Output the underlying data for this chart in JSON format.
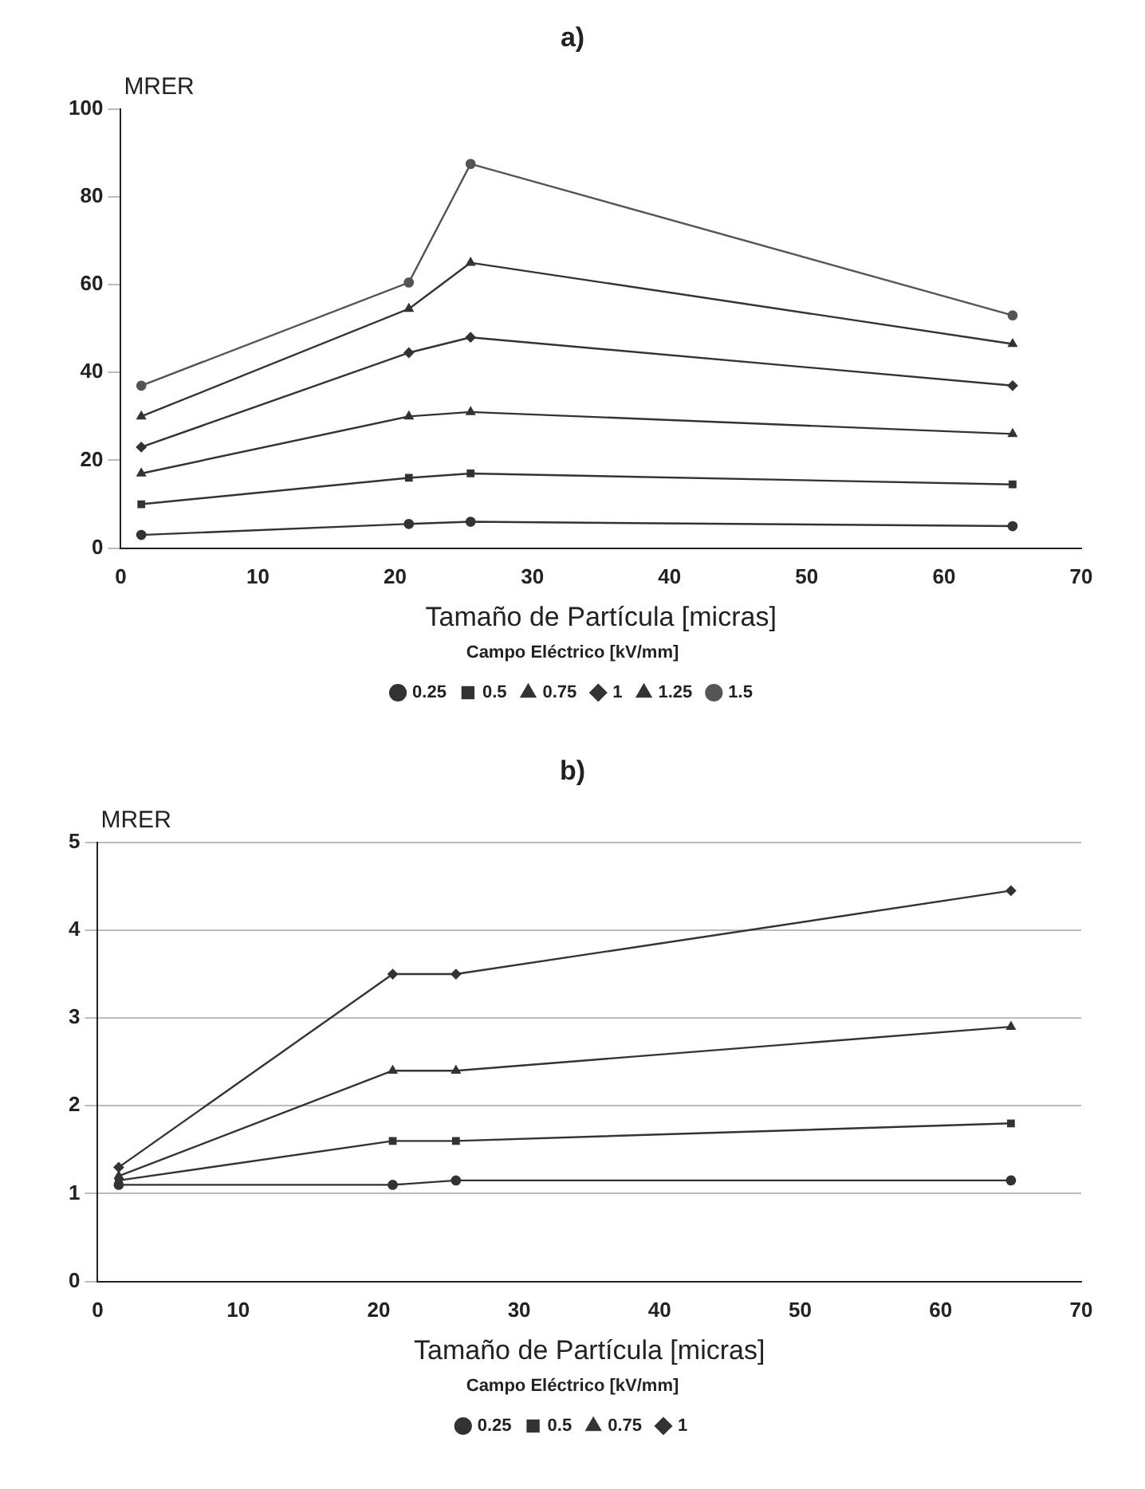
{
  "chart_data": [
    {
      "type": "line",
      "title": "a)",
      "xlabel": "Tamaño de Partícula [micras]",
      "ylabel": "MRER",
      "legend_title": "Campo Eléctrico [kV/mm]",
      "legend": "bottom",
      "grid": false,
      "x": [
        1.5,
        21,
        25.5,
        65
      ],
      "xlim": [
        0,
        70
      ],
      "xticks": [
        0,
        10,
        20,
        30,
        40,
        50,
        60,
        70
      ],
      "ylim": [
        0,
        100
      ],
      "yticks": [
        0,
        20,
        40,
        60,
        80,
        100
      ],
      "series": [
        {
          "name": "0.25",
          "color": "#333333",
          "marker": "circle",
          "values": [
            3,
            5.5,
            6,
            5
          ]
        },
        {
          "name": "0.5",
          "color": "#333333",
          "marker": "square",
          "values": [
            10,
            16,
            17,
            14.5
          ]
        },
        {
          "name": "0.75",
          "color": "#333333",
          "marker": "triangle",
          "values": [
            17,
            30,
            31,
            26
          ]
        },
        {
          "name": "1",
          "color": "#333333",
          "marker": "diamond",
          "values": [
            23,
            44.5,
            48,
            37
          ]
        },
        {
          "name": "1.25",
          "color": "#333333",
          "marker": "triangle",
          "values": [
            30,
            54.5,
            65,
            46.5
          ]
        },
        {
          "name": "1.5",
          "color": "#555555",
          "marker": "circle",
          "values": [
            37,
            60.5,
            87.5,
            53
          ]
        }
      ]
    },
    {
      "type": "line",
      "title": "b)",
      "xlabel": "Tamaño de Partícula [micras]",
      "ylabel": "MRER",
      "legend_title": "Campo Eléctrico [kV/mm]",
      "legend": "bottom",
      "grid": "y",
      "x": [
        1.5,
        21,
        25.5,
        65
      ],
      "xlim": [
        0,
        70
      ],
      "xticks": [
        0,
        10,
        20,
        30,
        40,
        50,
        60,
        70
      ],
      "ylim": [
        0,
        5
      ],
      "yticks": [
        0,
        1,
        2,
        3,
        4,
        5
      ],
      "series": [
        {
          "name": "0.25",
          "color": "#333333",
          "marker": "circle",
          "values": [
            1.1,
            1.1,
            1.15,
            1.15
          ]
        },
        {
          "name": "0.5",
          "color": "#333333",
          "marker": "square",
          "values": [
            1.15,
            1.6,
            1.6,
            1.8
          ]
        },
        {
          "name": "0.75",
          "color": "#333333",
          "marker": "triangle",
          "values": [
            1.2,
            2.4,
            2.4,
            2.9
          ]
        },
        {
          "name": "1",
          "color": "#333333",
          "marker": "diamond",
          "values": [
            1.3,
            3.5,
            3.5,
            4.45
          ]
        }
      ]
    }
  ]
}
